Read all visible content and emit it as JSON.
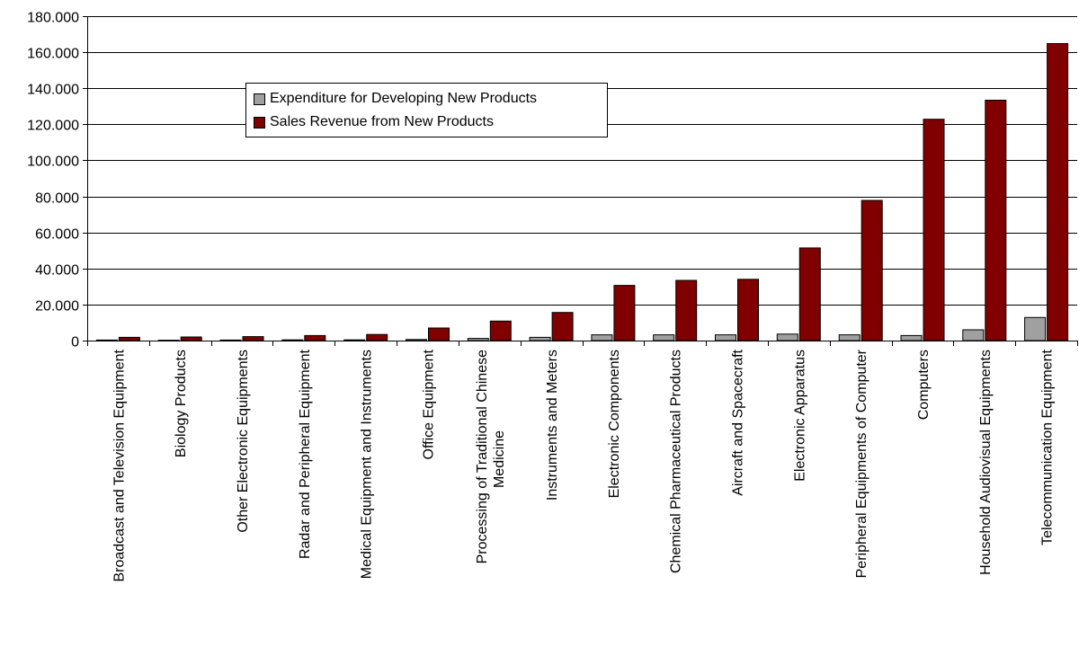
{
  "chart_data": {
    "type": "bar",
    "title": "",
    "xlabel": "",
    "ylabel": "",
    "ylim": [
      0,
      180000
    ],
    "yticks": [
      0,
      20000,
      40000,
      60000,
      80000,
      100000,
      120000,
      140000,
      160000,
      180000
    ],
    "ytick_labels": [
      "0",
      "20.000",
      "40.000",
      "60.000",
      "80.000",
      "100.000",
      "120.000",
      "140.000",
      "160.000",
      "180.000"
    ],
    "grid": true,
    "legend_position": "upper-left",
    "categories": [
      [
        "Broadcast and Television Equipment"
      ],
      [
        "Biology Products"
      ],
      [
        "Other Electronic Equipments"
      ],
      [
        "Radar and Peripheral Equipment"
      ],
      [
        "Medical Equipment and Instruments"
      ],
      [
        "Office Equipment"
      ],
      [
        "Processing of Traditional Chinese",
        "Medicine"
      ],
      [
        "Instruments and Meters"
      ],
      [
        "Electronic Components"
      ],
      [
        "Chemical Pharmaceutical Products"
      ],
      [
        "Aircraft and Spacecraft"
      ],
      [
        "Electronic Apparatus"
      ],
      [
        "Peripheral Equipments of Computer"
      ],
      [
        "Computers"
      ],
      [
        "Household Audiovisual Equipments"
      ],
      [
        "Telecommunication Equipment"
      ]
    ],
    "series": [
      {
        "name": "Expenditure for Developing New Products",
        "color": "#a0a0a0",
        "values": [
          300,
          200,
          300,
          400,
          400,
          600,
          1200,
          1800,
          3200,
          3200,
          3200,
          3600,
          3200,
          2800,
          6000,
          12800
        ]
      },
      {
        "name": "Sales Revenue from New Products",
        "color": "#800000",
        "values": [
          1800,
          2000,
          2200,
          2800,
          3400,
          7000,
          10800,
          15600,
          30600,
          33400,
          34000,
          51400,
          77800,
          122800,
          133400,
          164800
        ]
      }
    ]
  }
}
